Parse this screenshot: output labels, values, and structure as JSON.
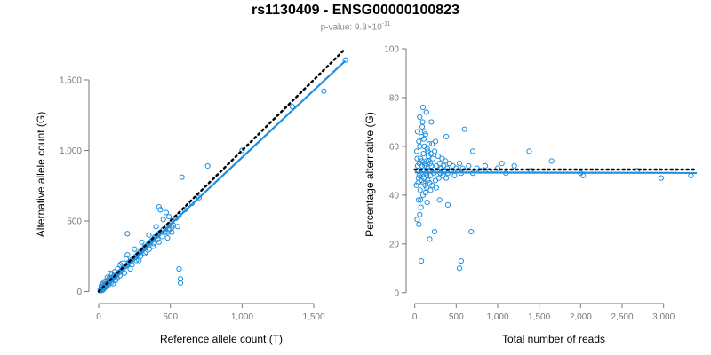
{
  "header": {
    "title": "rs1130409 - ENSG00000100823",
    "pvalue_prefix": "p-value: 9.3×10",
    "pvalue_exponent": "-11"
  },
  "colors": {
    "points": "#1f8fe0",
    "fit": "#1f8fe0",
    "reference": "#000000",
    "axis": "#777777"
  },
  "chart_data": [
    {
      "type": "scatter",
      "xlabel": "Reference allele count (T)",
      "ylabel": "Alternative allele count (G)",
      "xlim": [
        -50,
        1760
      ],
      "ylim": [
        -60,
        1720
      ],
      "xticks": [
        0,
        500,
        1000,
        1500
      ],
      "xtick_labels": [
        "0",
        "500",
        "1,000",
        "1,500"
      ],
      "yticks": [
        0,
        500,
        1000,
        1500
      ],
      "ytick_labels": [
        "0",
        "500",
        "1,000",
        "1,500"
      ],
      "fit_line": {
        "x": [
          0,
          1720
        ],
        "y": [
          0,
          1635
        ]
      },
      "reference_line": {
        "x": [
          0,
          1720
        ],
        "y": [
          0,
          1720
        ]
      },
      "points": [
        [
          10,
          12
        ],
        [
          15,
          20
        ],
        [
          22,
          18
        ],
        [
          30,
          28
        ],
        [
          35,
          40
        ],
        [
          40,
          33
        ],
        [
          45,
          50
        ],
        [
          50,
          45
        ],
        [
          55,
          60
        ],
        [
          60,
          52
        ],
        [
          65,
          70
        ],
        [
          70,
          62
        ],
        [
          75,
          78
        ],
        [
          80,
          72
        ],
        [
          85,
          90
        ],
        [
          90,
          82
        ],
        [
          95,
          100
        ],
        [
          100,
          92
        ],
        [
          105,
          110
        ],
        [
          110,
          100
        ],
        [
          120,
          115
        ],
        [
          130,
          125
        ],
        [
          140,
          135
        ],
        [
          150,
          140
        ],
        [
          160,
          150
        ],
        [
          170,
          165
        ],
        [
          180,
          175
        ],
        [
          190,
          180
        ],
        [
          200,
          190
        ],
        [
          210,
          205
        ],
        [
          220,
          210
        ],
        [
          230,
          225
        ],
        [
          240,
          230
        ],
        [
          250,
          240
        ],
        [
          260,
          250
        ],
        [
          270,
          262
        ],
        [
          280,
          270
        ],
        [
          290,
          282
        ],
        [
          300,
          290
        ],
        [
          310,
          300
        ],
        [
          320,
          315
        ],
        [
          330,
          320
        ],
        [
          340,
          330
        ],
        [
          350,
          345
        ],
        [
          360,
          350
        ],
        [
          370,
          362
        ],
        [
          380,
          370
        ],
        [
          390,
          385
        ],
        [
          400,
          390
        ],
        [
          410,
          400
        ],
        [
          420,
          410
        ],
        [
          430,
          420
        ],
        [
          450,
          440
        ],
        [
          470,
          455
        ],
        [
          490,
          470
        ],
        [
          510,
          495
        ],
        [
          540,
          520
        ],
        [
          560,
          540
        ],
        [
          600,
          580
        ],
        [
          650,
          625
        ],
        [
          700,
          665
        ],
        [
          1000,
          1000
        ],
        [
          1350,
          1310
        ],
        [
          1570,
          1420
        ],
        [
          1720,
          1640
        ],
        [
          20,
          45
        ],
        [
          40,
          70
        ],
        [
          60,
          100
        ],
        [
          80,
          130
        ],
        [
          100,
          55
        ],
        [
          120,
          80
        ],
        [
          150,
          190
        ],
        [
          180,
          130
        ],
        [
          200,
          260
        ],
        [
          220,
          160
        ],
        [
          250,
          300
        ],
        [
          280,
          220
        ],
        [
          300,
          350
        ],
        [
          330,
          280
        ],
        [
          350,
          400
        ],
        [
          380,
          320
        ],
        [
          400,
          460
        ],
        [
          420,
          350
        ],
        [
          450,
          510
        ],
        [
          480,
          420
        ],
        [
          200,
          410
        ],
        [
          580,
          810
        ],
        [
          760,
          890
        ],
        [
          420,
          600
        ],
        [
          430,
          580
        ],
        [
          470,
          560
        ],
        [
          510,
          455
        ],
        [
          550,
          460
        ],
        [
          490,
          530
        ],
        [
          520,
          470
        ],
        [
          560,
          160
        ],
        [
          570,
          90
        ],
        [
          570,
          60
        ],
        [
          510,
          420
        ],
        [
          480,
          380
        ],
        [
          12,
          5
        ],
        [
          25,
          8
        ],
        [
          33,
          15
        ],
        [
          48,
          30
        ],
        [
          58,
          38
        ],
        [
          68,
          48
        ],
        [
          88,
          64
        ],
        [
          108,
          80
        ],
        [
          128,
          96
        ],
        [
          148,
          112
        ],
        [
          18,
          35
        ],
        [
          28,
          55
        ],
        [
          38,
          25
        ],
        [
          52,
          75
        ],
        [
          72,
          95
        ],
        [
          92,
          120
        ],
        [
          112,
          140
        ],
        [
          132,
          160
        ],
        [
          162,
          200
        ],
        [
          192,
          230
        ],
        [
          232,
          190
        ],
        [
          262,
          220
        ],
        [
          292,
          250
        ],
        [
          322,
          270
        ],
        [
          352,
          300
        ],
        [
          382,
          340
        ],
        [
          412,
          370
        ],
        [
          442,
          390
        ],
        [
          462,
          420
        ],
        [
          492,
          440
        ]
      ]
    },
    {
      "type": "scatter",
      "xlabel": "Total number of reads",
      "ylabel": "Percentage alternative (G)",
      "xlim": [
        -50,
        3400
      ],
      "ylim": [
        -3,
        100
      ],
      "xticks": [
        0,
        500,
        1000,
        1500,
        2000,
        2500,
        3000
      ],
      "xtick_labels": [
        "0",
        "500",
        "1,000",
        "1,500",
        "2,000",
        "2,500",
        "3,000"
      ],
      "yticks": [
        0,
        20,
        40,
        60,
        80,
        100
      ],
      "ytick_labels": [
        "0",
        "20",
        "40",
        "60",
        "80",
        "100"
      ],
      "fit_line": {
        "x": [
          0,
          3400
        ],
        "y": [
          49.3,
          49.1
        ]
      },
      "reference_line": {
        "x": [
          0,
          3400
        ],
        "y": [
          50.5,
          50.5
        ]
      },
      "points": [
        [
          20,
          44
        ],
        [
          25,
          58
        ],
        [
          30,
          30
        ],
        [
          35,
          66
        ],
        [
          40,
          50
        ],
        [
          45,
          38
        ],
        [
          50,
          62
        ],
        [
          55,
          48
        ],
        [
          60,
          72
        ],
        [
          65,
          42
        ],
        [
          70,
          55
        ],
        [
          75,
          35
        ],
        [
          80,
          64
        ],
        [
          85,
          46
        ],
        [
          90,
          52
        ],
        [
          95,
          70
        ],
        [
          100,
          40
        ],
        [
          105,
          57
        ],
        [
          110,
          47
        ],
        [
          115,
          60
        ],
        [
          120,
          53
        ],
        [
          125,
          44
        ],
        [
          130,
          65
        ],
        [
          135,
          49
        ],
        [
          140,
          54
        ],
        [
          145,
          43
        ],
        [
          150,
          59
        ],
        [
          155,
          51
        ],
        [
          160,
          46
        ],
        [
          165,
          56
        ],
        [
          170,
          50
        ],
        [
          175,
          61
        ],
        [
          180,
          45
        ],
        [
          185,
          53
        ],
        [
          190,
          48
        ],
        [
          195,
          57
        ],
        [
          200,
          52
        ],
        [
          210,
          44
        ],
        [
          220,
          55
        ],
        [
          230,
          49
        ],
        [
          240,
          58
        ],
        [
          250,
          46
        ],
        [
          260,
          52
        ],
        [
          270,
          50
        ],
        [
          280,
          56
        ],
        [
          290,
          47
        ],
        [
          300,
          53
        ],
        [
          310,
          49
        ],
        [
          320,
          51
        ],
        [
          330,
          55
        ],
        [
          340,
          48
        ],
        [
          350,
          52
        ],
        [
          360,
          50
        ],
        [
          370,
          54
        ],
        [
          380,
          47
        ],
        [
          390,
          51
        ],
        [
          400,
          49
        ],
        [
          420,
          53
        ],
        [
          440,
          50
        ],
        [
          460,
          52
        ],
        [
          480,
          48
        ],
        [
          500,
          51
        ],
        [
          520,
          50
        ],
        [
          540,
          53
        ],
        [
          560,
          49
        ],
        [
          580,
          51
        ],
        [
          600,
          50
        ],
        [
          650,
          52
        ],
        [
          700,
          49
        ],
        [
          750,
          51
        ],
        [
          800,
          50
        ],
        [
          850,
          52
        ],
        [
          900,
          50
        ],
        [
          1000,
          51
        ],
        [
          1050,
          53
        ],
        [
          1100,
          49
        ],
        [
          1200,
          52
        ],
        [
          1380,
          58
        ],
        [
          1400,
          50
        ],
        [
          1650,
          54
        ],
        [
          2000,
          49
        ],
        [
          2030,
          48
        ],
        [
          2680,
          50
        ],
        [
          2970,
          47
        ],
        [
          3330,
          48
        ],
        [
          50,
          28
        ],
        [
          60,
          32
        ],
        [
          80,
          13
        ],
        [
          100,
          76
        ],
        [
          140,
          74
        ],
        [
          180,
          22
        ],
        [
          200,
          70
        ],
        [
          240,
          25
        ],
        [
          380,
          64
        ],
        [
          540,
          10
        ],
        [
          560,
          13
        ],
        [
          600,
          67
        ],
        [
          680,
          25
        ],
        [
          700,
          58
        ],
        [
          400,
          36
        ],
        [
          300,
          38
        ],
        [
          150,
          37
        ],
        [
          120,
          66
        ],
        [
          90,
          68
        ],
        [
          250,
          62
        ],
        [
          30,
          55
        ],
        [
          40,
          45
        ],
        [
          60,
          60
        ],
        [
          70,
          38
        ],
        [
          110,
          63
        ],
        [
          130,
          41
        ],
        [
          160,
          58
        ],
        [
          190,
          42
        ],
        [
          210,
          61
        ],
        [
          260,
          43
        ],
        [
          35,
          52
        ],
        [
          45,
          47
        ],
        [
          55,
          53
        ],
        [
          75,
          49
        ],
        [
          85,
          54
        ],
        [
          105,
          45
        ],
        [
          125,
          52
        ],
        [
          145,
          48
        ],
        [
          165,
          54
        ],
        [
          185,
          50
        ]
      ]
    }
  ]
}
